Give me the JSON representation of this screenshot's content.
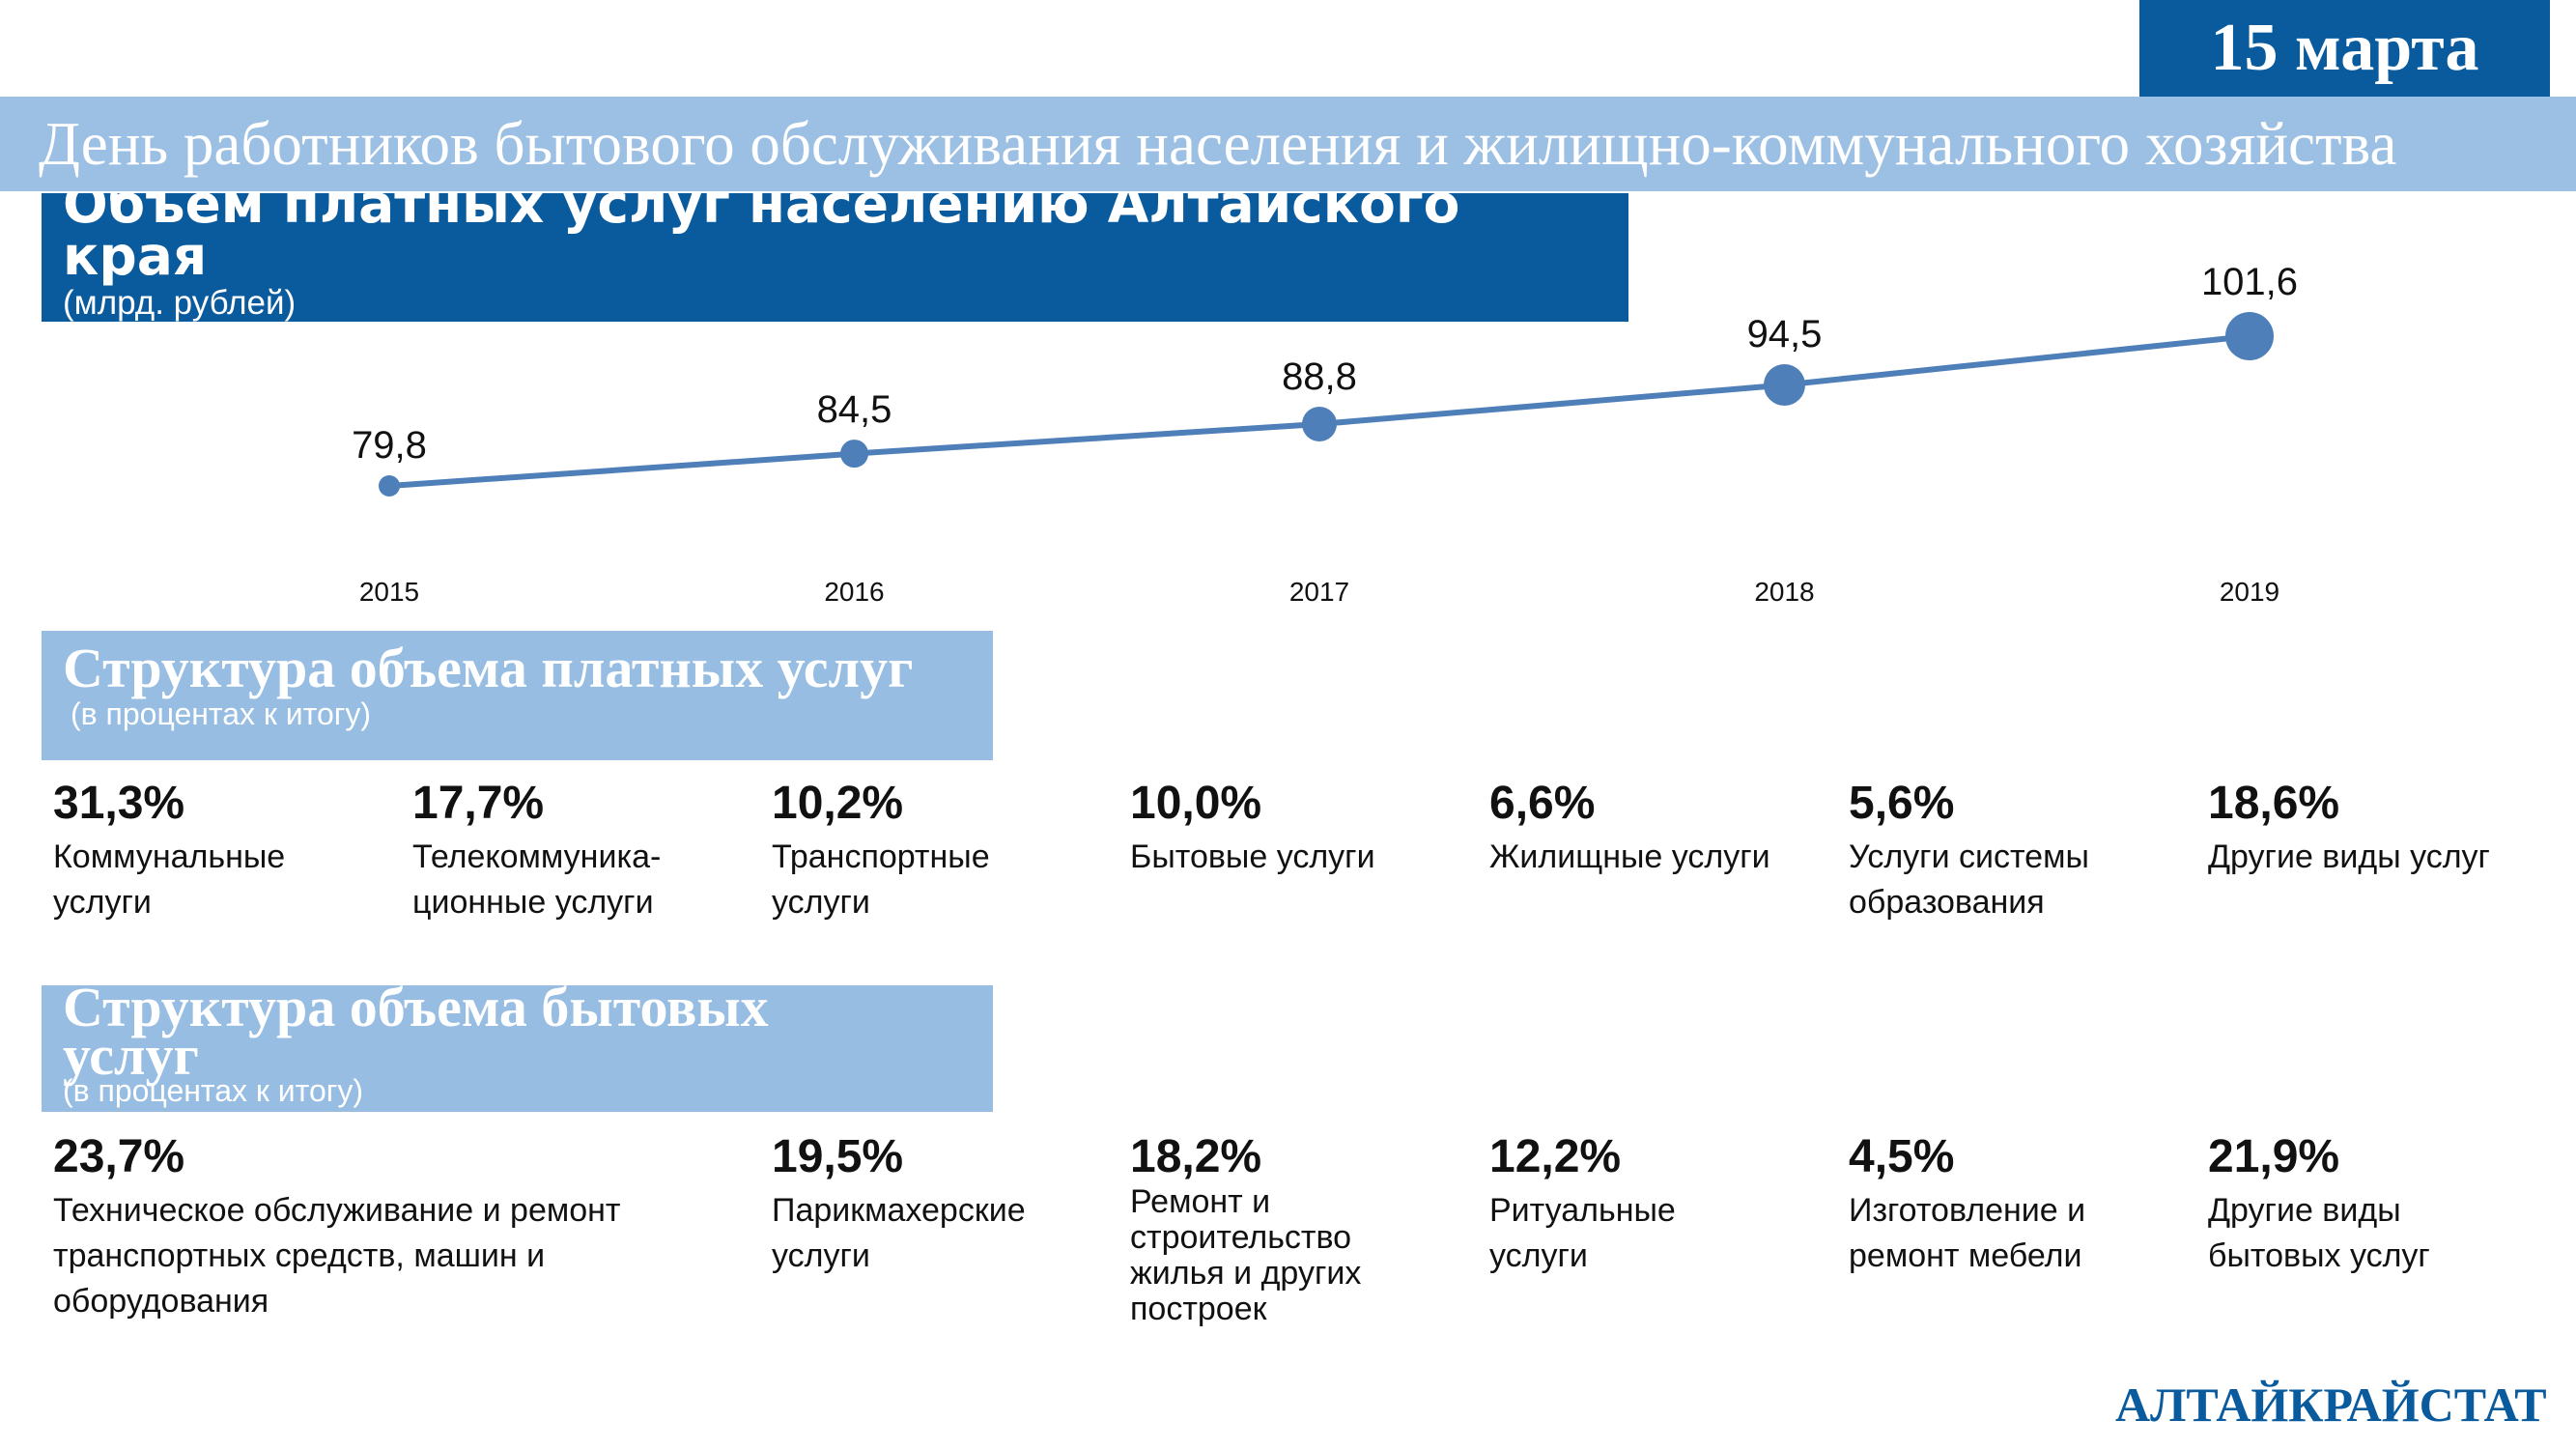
{
  "header": {
    "date": "15 марта",
    "holiday": "День работников бытового обслуживания населения и жилищно-коммунального хозяйства"
  },
  "chart_data": {
    "type": "line",
    "title": "Объем платных услуг населению Алтайского края",
    "subtitle": "(млрд. рублей)",
    "categories": [
      "2015",
      "2016",
      "2017",
      "2018",
      "2019"
    ],
    "values": [
      79.8,
      84.5,
      88.8,
      94.5,
      101.6
    ],
    "value_labels": [
      "79,8",
      "84,5",
      "88,8",
      "94,5",
      "101,6"
    ],
    "grid": false,
    "legend": "none"
  },
  "paid_services": {
    "title": "Структура объема платных услуг",
    "subtitle": "(в процентах к итогу)",
    "items": [
      {
        "value": "31,3%",
        "label": "Коммунальные услуги"
      },
      {
        "value": "17,7%",
        "label": "Телекоммуника-ционные услуги"
      },
      {
        "value": "10,2%",
        "label": "Транспортные услуги"
      },
      {
        "value": "10,0%",
        "label": "Бытовые услуги"
      },
      {
        "value": "6,6%",
        "label": "Жилищные услуги"
      },
      {
        "value": "5,6%",
        "label": "Услуги системы образования"
      },
      {
        "value": "18,6%",
        "label": "Другие виды услуг"
      }
    ]
  },
  "household_services": {
    "title": "Структура объема бытовых услуг",
    "subtitle": "(в процентах к итогу)",
    "items": [
      {
        "value": "23,7%",
        "label": "Техническое обслуживание и ремонт транспортных средств, машин и оборудования"
      },
      {
        "value": "19,5%",
        "label": "Парикмахерские услуги"
      },
      {
        "value": "18,2%",
        "label": "Ремонт и строительство жилья и других построек"
      },
      {
        "value": "12,2%",
        "label": "Ритуальные услуги"
      },
      {
        "value": "4,5%",
        "label": "Изготовление и ремонт мебели"
      },
      {
        "value": "21,9%",
        "label": "Другие виды бытовых услуг"
      }
    ]
  },
  "footer": {
    "brand": "АЛТАЙКРАЙСТАТ"
  },
  "colors": {
    "brand": "#0a5b9d",
    "banner": "#9cbfe4",
    "section": "#97bde2",
    "line": "#4e7fb8"
  }
}
